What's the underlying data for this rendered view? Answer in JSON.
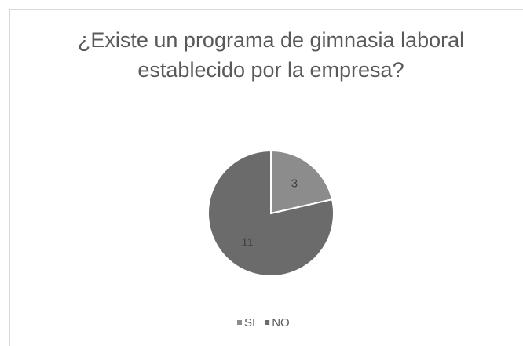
{
  "chart_data": {
    "type": "pie",
    "title": "¿Existe un programa de gimnasia laboral establecido por la empresa?",
    "categories": [
      "SI",
      "NO"
    ],
    "values": [
      3,
      11
    ],
    "colors": [
      "#8c8c8c",
      "#6b6b6b"
    ],
    "legend": "bottom"
  }
}
